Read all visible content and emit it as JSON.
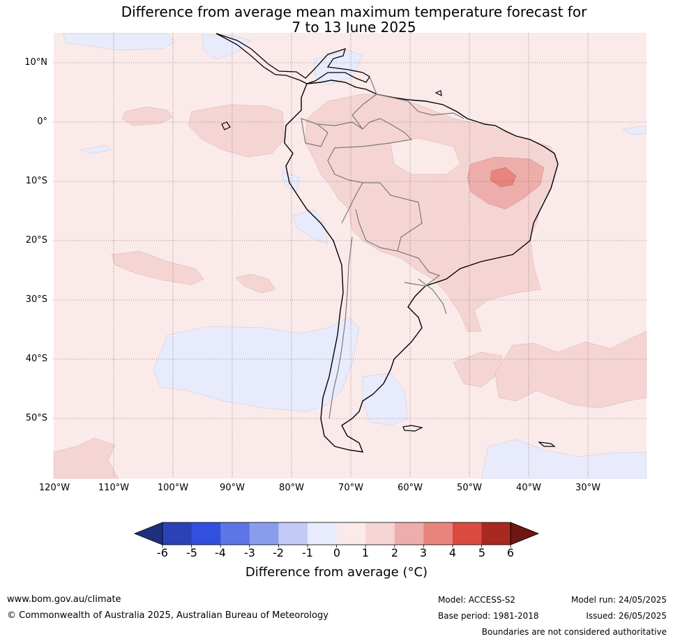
{
  "title_line1": "Difference from average mean maximum temperature forecast for",
  "title_line2": "7 to 13 June 2025",
  "latitude_labels": [
    "10°N",
    "0°",
    "10°S",
    "20°S",
    "30°S",
    "40°S",
    "50°S"
  ],
  "longitude_labels": [
    "120°W",
    "110°W",
    "100°W",
    "90°W",
    "80°W",
    "70°W",
    "60°W",
    "50°W",
    "40°W",
    "30°W"
  ],
  "colorbar": {
    "ticks": [
      "-6",
      "-5",
      "-4",
      "-3",
      "-2",
      "-1",
      "0",
      "1",
      "2",
      "3",
      "4",
      "5",
      "6"
    ],
    "colors": [
      "#1f2f7e",
      "#2a42b6",
      "#3150e0",
      "#5c76e6",
      "#8a9ded",
      "#c3caf5",
      "#e8ebfb",
      "#fbeaea",
      "#f5d5d4",
      "#edaeab",
      "#e8847d",
      "#da4a3e",
      "#a9281f",
      "#6e1612"
    ],
    "label": "Difference from average (°C)"
  },
  "map_legend_colors": {
    "ocean_base": "#fbeaea",
    "cool_anomaly": "#e8ebfb",
    "warm_1_2": "#f5d5d4",
    "warm_2_3": "#edaeab",
    "warm_3_4": "#e8847d"
  },
  "footer": {
    "website": "www.bom.gov.au/climate",
    "copyright": "© Commonwealth of Australia 2025, Australian Bureau of Meteorology",
    "model": "Model: ACCESS-S2",
    "base_period": "Base period: 1981-2018",
    "model_run": "Model run: 24/05/2025",
    "issued": "Issued: 26/05/2025",
    "disclaimer": "Boundaries are not considered authoritative"
  }
}
